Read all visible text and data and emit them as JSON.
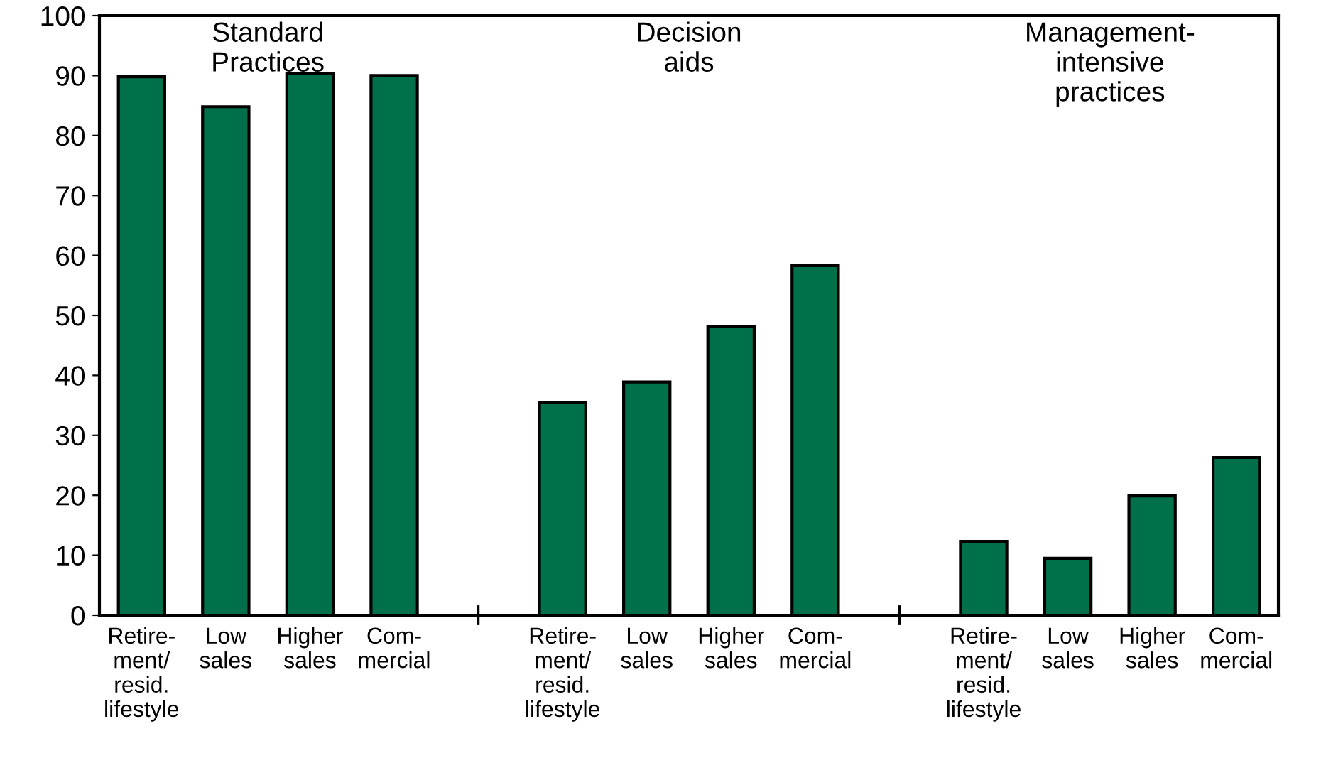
{
  "chart_data": {
    "type": "bar",
    "categories": [
      "Retire-\nment/\nresid.\nlifestyle",
      "Low\nsales",
      "Higher\nsales",
      "Com-\nmercial",
      null,
      "Retire-\nment/\nresid.\nlifestyle",
      "Low\nsales",
      "Higher\nsales",
      "Com-\nmercial",
      null,
      "Retire-\nment/\nresid.\nlifestyle",
      "Low\nsales",
      "Higher\nsales",
      "Com-\nmercial"
    ],
    "values": [
      89.8,
      84.8,
      90.4,
      90.0,
      null,
      35.5,
      38.9,
      48.1,
      58.3,
      null,
      12.3,
      9.5,
      19.9,
      26.3
    ],
    "color": "#00704a",
    "annotations": [
      "Standard\nPractices",
      "Decision\naids",
      "Management-\nintensive\npractices"
    ],
    "ylim": [
      0,
      100
    ],
    "yticks": [
      0,
      10,
      20,
      30,
      40,
      50,
      60,
      70,
      80,
      90,
      100
    ],
    "grid": false,
    "legend": false
  }
}
